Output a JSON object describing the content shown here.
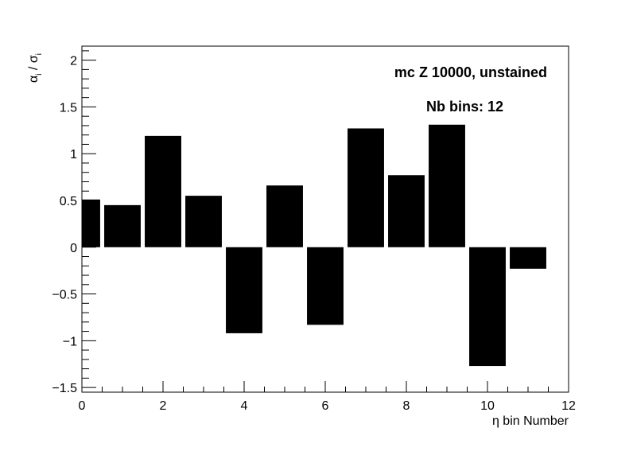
{
  "chart_data": {
    "type": "bar",
    "x": [
      0,
      1,
      2,
      3,
      4,
      5,
      6,
      7,
      8,
      9,
      10,
      11
    ],
    "values": [
      0.51,
      0.45,
      1.19,
      0.55,
      -0.92,
      0.66,
      -0.83,
      1.27,
      0.77,
      1.31,
      -1.27,
      -0.23
    ],
    "bar_width": 0.9,
    "xlabel": "η bin Number",
    "ylabel_main": "α",
    "ylabel_sub1": "i",
    "ylabel_sep": " / σ",
    "ylabel_sub2": "i",
    "xlim": [
      0,
      12
    ],
    "ylim": [
      -1.55,
      2.15
    ],
    "x_ticks": [
      0,
      2,
      4,
      6,
      8,
      10,
      12
    ],
    "x_tick_labels": [
      "0",
      "2",
      "4",
      "6",
      "8",
      "10",
      "12"
    ],
    "y_ticks": [
      -1.5,
      -1,
      -0.5,
      0,
      0.5,
      1,
      1.5,
      2
    ],
    "y_tick_labels": [
      "−1.5",
      "−1",
      "−0.5",
      "0",
      "0.5",
      "1",
      "1.5",
      "2"
    ],
    "annotations": [
      "mc Z 10000, unstained",
      "Nb bins: 12"
    ],
    "grid": false,
    "bar_color": "#000000"
  }
}
